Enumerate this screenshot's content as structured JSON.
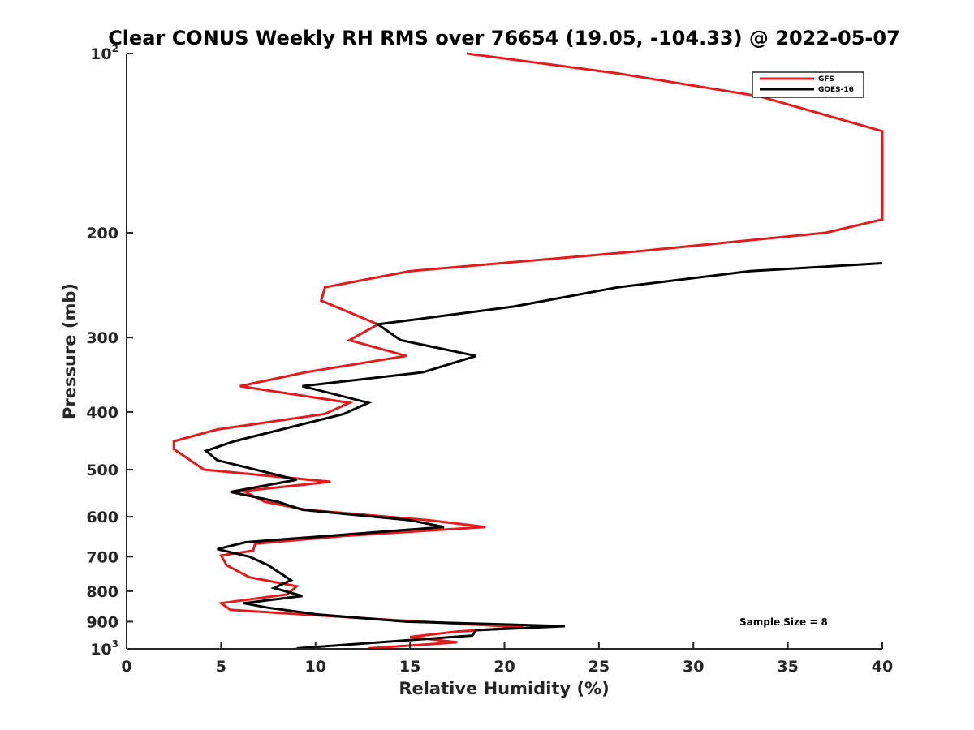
{
  "chart_data": {
    "type": "line",
    "title": "Clear CONUS Weekly RH RMS over 76654 (19.05, -104.33) @ 2022-05-07",
    "xlabel": "Relative Humidity (%)",
    "ylabel": "Pressure (mb)",
    "xlim": [
      0,
      40
    ],
    "ylim": [
      100,
      1000
    ],
    "yscale": "log",
    "y_reversed": true,
    "xticks": [
      0,
      5,
      10,
      15,
      20,
      25,
      30,
      35,
      40
    ],
    "xtick_labels": [
      "0",
      "5",
      "10",
      "15",
      "20",
      "25",
      "30",
      "35",
      "40"
    ],
    "yticks": [
      {
        "value": 100,
        "base": "10",
        "exp": "2"
      },
      {
        "value": 200,
        "label": "200"
      },
      {
        "value": 300,
        "label": "300"
      },
      {
        "value": 400,
        "label": "400"
      },
      {
        "value": 500,
        "label": "500"
      },
      {
        "value": 600,
        "label": "600"
      },
      {
        "value": 700,
        "label": "700"
      },
      {
        "value": 800,
        "label": "800"
      },
      {
        "value": 900,
        "label": "900"
      },
      {
        "value": 1000,
        "base": "10",
        "exp": "3"
      }
    ],
    "legend": {
      "position": "top-right"
    },
    "annotation": "Sample Size = 8",
    "series": [
      {
        "name": "GFS",
        "color": "#e41a1c",
        "points": [
          [
            18.0,
            100
          ],
          [
            26.0,
            108
          ],
          [
            33.5,
            118
          ],
          [
            40.0,
            135
          ],
          [
            40.0,
            190
          ],
          [
            37.0,
            200
          ],
          [
            27.0,
            215
          ],
          [
            15.0,
            232
          ],
          [
            10.5,
            247
          ],
          [
            10.3,
            260
          ],
          [
            13.3,
            285
          ],
          [
            11.8,
            303
          ],
          [
            14.8,
            322
          ],
          [
            9.5,
            343
          ],
          [
            6.0,
            362
          ],
          [
            11.8,
            386
          ],
          [
            10.5,
            403
          ],
          [
            4.8,
            428
          ],
          [
            2.5,
            448
          ],
          [
            2.5,
            462
          ],
          [
            3.2,
            478
          ],
          [
            4.1,
            500
          ],
          [
            10.8,
            524
          ],
          [
            6.2,
            543
          ],
          [
            7.3,
            566
          ],
          [
            9.5,
            584
          ],
          [
            16.0,
            608
          ],
          [
            19.0,
            624
          ],
          [
            11.5,
            646
          ],
          [
            6.8,
            666
          ],
          [
            6.7,
            684
          ],
          [
            5.0,
            697
          ],
          [
            5.3,
            724
          ],
          [
            6.5,
            758
          ],
          [
            9.0,
            785
          ],
          [
            8.5,
            810
          ],
          [
            5.0,
            838
          ],
          [
            5.5,
            860
          ],
          [
            9.5,
            876
          ],
          [
            14.5,
            896
          ],
          [
            21.0,
            920
          ],
          [
            17.5,
            935
          ],
          [
            15.0,
            955
          ],
          [
            17.5,
            975
          ],
          [
            12.8,
            998
          ]
        ]
      },
      {
        "name": "GOES-16",
        "color": "#000000",
        "points": [
          [
            40.0,
            225
          ],
          [
            33.0,
            232
          ],
          [
            26.0,
            247
          ],
          [
            20.5,
            266
          ],
          [
            13.3,
            285
          ],
          [
            14.5,
            303
          ],
          [
            18.5,
            322
          ],
          [
            15.7,
            343
          ],
          [
            9.3,
            362
          ],
          [
            12.8,
            386
          ],
          [
            11.5,
            403
          ],
          [
            5.7,
            448
          ],
          [
            4.2,
            465
          ],
          [
            4.8,
            482
          ],
          [
            9.0,
            520
          ],
          [
            5.5,
            545
          ],
          [
            8.0,
            566
          ],
          [
            9.3,
            584
          ],
          [
            15.0,
            608
          ],
          [
            16.8,
            624
          ],
          [
            6.3,
            662
          ],
          [
            4.8,
            680
          ],
          [
            6.5,
            700
          ],
          [
            7.5,
            724
          ],
          [
            8.7,
            767
          ],
          [
            7.8,
            790
          ],
          [
            9.3,
            815
          ],
          [
            6.2,
            838
          ],
          [
            7.5,
            853
          ],
          [
            10.2,
            876
          ],
          [
            14.8,
            900
          ],
          [
            23.2,
            916
          ],
          [
            18.5,
            930
          ],
          [
            18.3,
            950
          ],
          [
            9.0,
            998
          ]
        ]
      }
    ]
  }
}
